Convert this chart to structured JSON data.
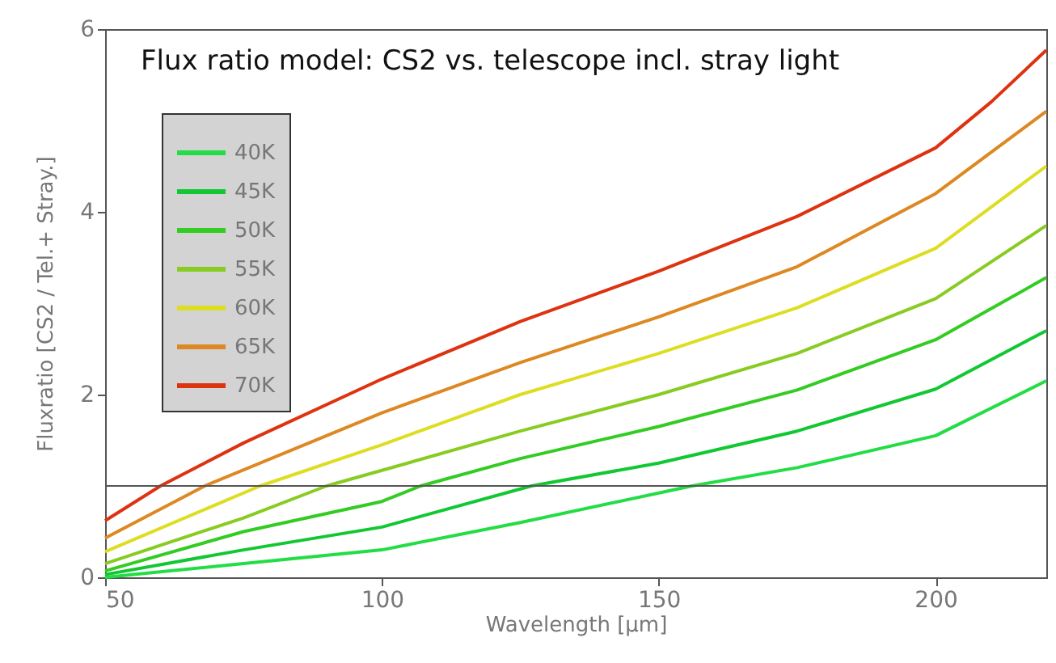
{
  "chart_data": {
    "type": "line",
    "title": "Flux ratio model: CS2 vs. telescope incl. stray light",
    "xlabel": "Wavelength [μm]",
    "ylabel": "Fluxratio [CS2 / Tel.+ Stray.]",
    "xlim": [
      50,
      220
    ],
    "ylim": [
      0,
      6
    ],
    "xticks": [
      50,
      100,
      150,
      200
    ],
    "yticks": [
      0,
      2,
      4,
      6
    ],
    "grid": false,
    "legend": "top left",
    "line_style": "solid",
    "marker": "none",
    "ref_lines": [
      {
        "axis": "y",
        "value": 1,
        "color": "#555555"
      }
    ],
    "series": [
      {
        "name": "40K",
        "color": "#22dd44",
        "x": [
          50,
          75,
          100,
          125,
          156,
          175,
          200,
          220
        ],
        "values": [
          0.0,
          0.15,
          0.3,
          0.6,
          1.0,
          1.2,
          1.55,
          2.15
        ]
      },
      {
        "name": "45K",
        "color": "#11c833",
        "x": [
          50,
          75,
          100,
          127,
          150,
          175,
          200,
          220
        ],
        "values": [
          0.03,
          0.3,
          0.55,
          1.0,
          1.25,
          1.6,
          2.06,
          2.7
        ]
      },
      {
        "name": "50K",
        "color": "#33cc22",
        "x": [
          50,
          75,
          100,
          107,
          125,
          150,
          175,
          200,
          220
        ],
        "values": [
          0.07,
          0.5,
          0.83,
          1.0,
          1.3,
          1.65,
          2.05,
          2.6,
          3.28
        ]
      },
      {
        "name": "55K",
        "color": "#88cc22",
        "x": [
          50,
          75,
          90,
          100,
          125,
          150,
          175,
          200,
          220
        ],
        "values": [
          0.15,
          0.65,
          1.0,
          1.17,
          1.6,
          2.0,
          2.45,
          3.05,
          3.85
        ]
      },
      {
        "name": "60K",
        "color": "#dddd22",
        "x": [
          50,
          78,
          100,
          125,
          150,
          175,
          200,
          220
        ],
        "values": [
          0.28,
          1.0,
          1.45,
          2.0,
          2.45,
          2.95,
          3.6,
          4.5
        ]
      },
      {
        "name": "65K",
        "color": "#dd8822",
        "x": [
          50,
          68,
          100,
          125,
          150,
          175,
          200,
          220
        ],
        "values": [
          0.43,
          1.0,
          1.8,
          2.35,
          2.85,
          3.4,
          4.2,
          5.1
        ]
      },
      {
        "name": "70K",
        "color": "#dd3311",
        "x": [
          50,
          60,
          75,
          100,
          125,
          150,
          175,
          200,
          210,
          220
        ],
        "values": [
          0.62,
          1.0,
          1.47,
          2.17,
          2.8,
          3.35,
          3.95,
          4.7,
          5.2,
          5.77
        ]
      }
    ]
  }
}
